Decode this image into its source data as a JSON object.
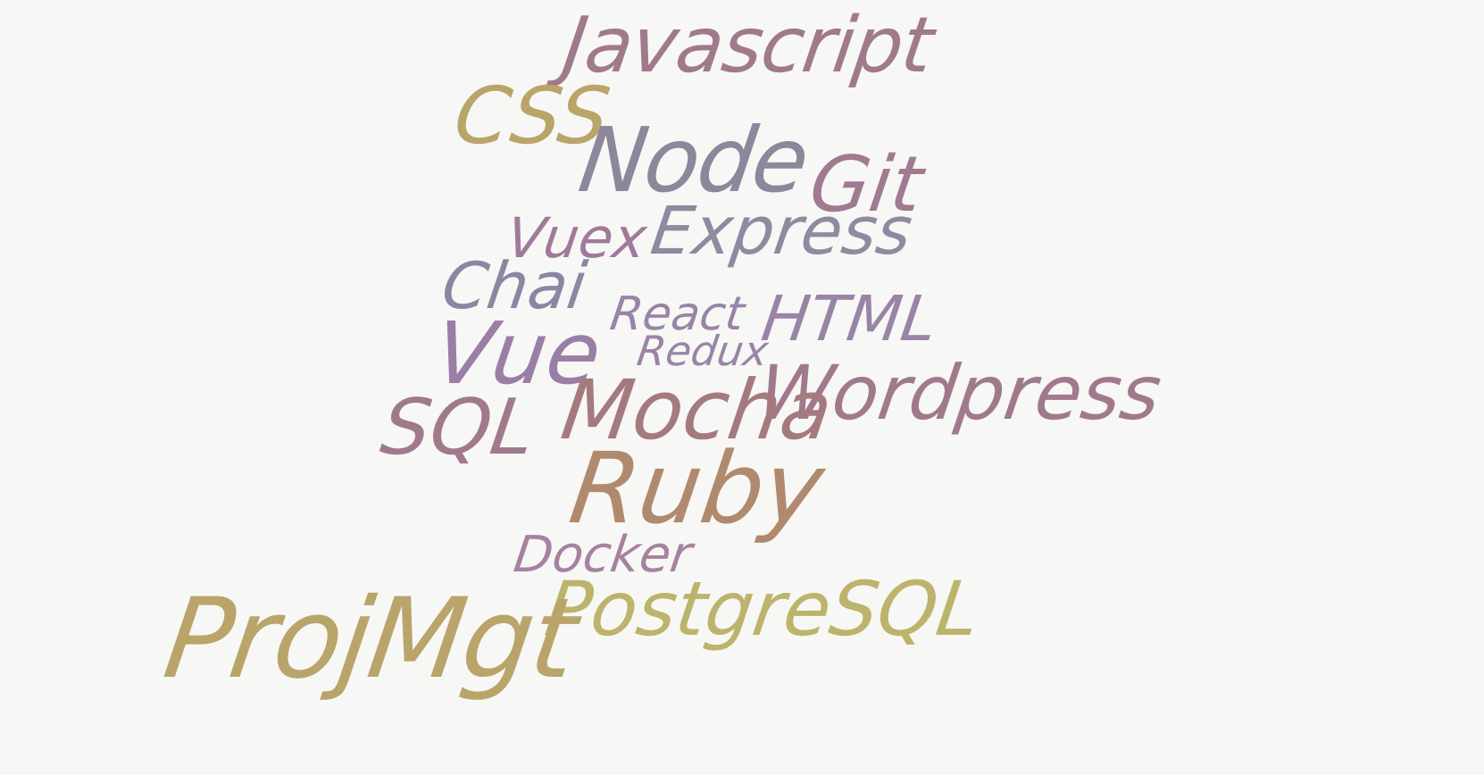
{
  "words": [
    {
      "name": "word-javascript",
      "text": "Javascript",
      "color": "#a07a8c"
    },
    {
      "name": "word-css",
      "text": "CSS",
      "color": "#b9a46a"
    },
    {
      "name": "word-node",
      "text": "Node",
      "color": "#8c879a"
    },
    {
      "name": "word-git",
      "text": "Git",
      "color": "#a07a90"
    },
    {
      "name": "word-vuex",
      "text": "Vuex",
      "color": "#a07a9a"
    },
    {
      "name": "word-express",
      "text": "Express",
      "color": "#8e8aa0"
    },
    {
      "name": "word-chai",
      "text": "Chai",
      "color": "#8a87a2"
    },
    {
      "name": "word-react",
      "text": "React",
      "color": "#9a84a6"
    },
    {
      "name": "word-html",
      "text": "HTML",
      "color": "#9a84a6"
    },
    {
      "name": "word-redux",
      "text": "Redux",
      "color": "#9a84a6"
    },
    {
      "name": "word-vue",
      "text": "Vue",
      "color": "#9a7ea6"
    },
    {
      "name": "word-wordpress",
      "text": "Wordpress",
      "color": "#a07a8c"
    },
    {
      "name": "word-sql",
      "text": "SQL",
      "color": "#a07a8c"
    },
    {
      "name": "word-mocha",
      "text": "Mocha",
      "color": "#a57a7e"
    },
    {
      "name": "word-ruby",
      "text": "Ruby",
      "color": "#b08a6e"
    },
    {
      "name": "word-docker",
      "text": "Docker",
      "color": "#a582a0"
    },
    {
      "name": "word-postgresql",
      "text": "PostgreSQL",
      "color": "#bcb46c"
    },
    {
      "name": "word-projmgt",
      "text": "ProjMgt",
      "color": "#b9a46a"
    }
  ]
}
